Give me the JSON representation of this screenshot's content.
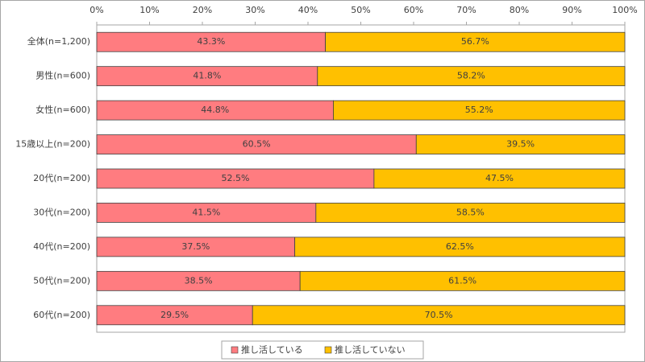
{
  "chart_data": {
    "type": "bar",
    "orientation": "horizontal",
    "stacked": true,
    "categories": [
      "全体(n=1,200)",
      "男性(n=600)",
      "女性(n=600)",
      "15歳以上(n=200)",
      "20代(n=200)",
      "30代(n=200)",
      "40代(n=200)",
      "50代(n=200)",
      "60代(n=200)"
    ],
    "series": [
      {
        "name": "推し活している",
        "color": "#ff7c80",
        "values": [
          43.3,
          41.8,
          44.8,
          60.5,
          52.5,
          41.5,
          37.5,
          38.5,
          29.5
        ],
        "value_labels": [
          "43.3%",
          "41.8%",
          "44.8%",
          "60.5%",
          "52.5%",
          "41.5%",
          "37.5%",
          "38.5%",
          "29.5%"
        ]
      },
      {
        "name": "推し活していない",
        "color": "#ffc000",
        "values": [
          56.7,
          58.2,
          55.2,
          39.5,
          47.5,
          58.5,
          62.5,
          61.5,
          70.5
        ],
        "value_labels": [
          "56.7%",
          "58.2%",
          "55.2%",
          "39.5%",
          "47.5%",
          "58.5%",
          "62.5%",
          "61.5%",
          "70.5%"
        ]
      }
    ],
    "xlim": [
      0,
      100
    ],
    "xticks": [
      {
        "value": 0,
        "label": "0%"
      },
      {
        "value": 10,
        "label": "10%"
      },
      {
        "value": 20,
        "label": "20%"
      },
      {
        "value": 30,
        "label": "30%"
      },
      {
        "value": 40,
        "label": "40%"
      },
      {
        "value": 50,
        "label": "50%"
      },
      {
        "value": 60,
        "label": "60%"
      },
      {
        "value": 70,
        "label": "70%"
      },
      {
        "value": 80,
        "label": "80%"
      },
      {
        "value": 90,
        "label": "90%"
      },
      {
        "value": 100,
        "label": "100%"
      }
    ],
    "legend": "bottom"
  }
}
